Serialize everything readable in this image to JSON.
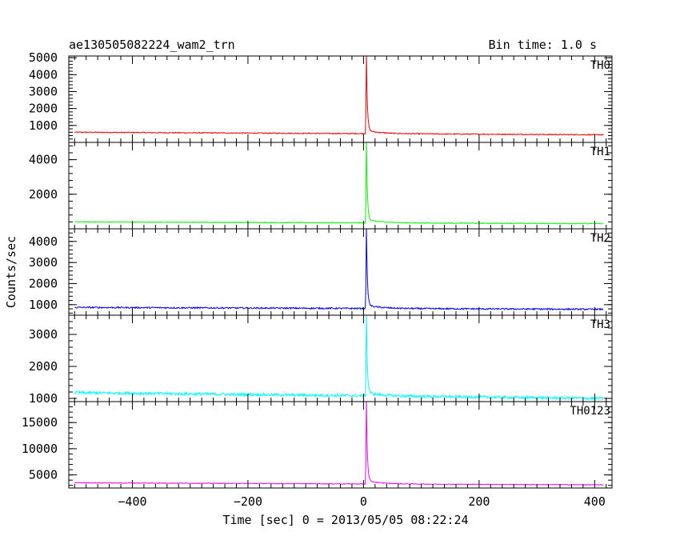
{
  "chart_data": {
    "type": "line",
    "title": "ae130505082224_wam2_trn",
    "subtitle": "Bin time: 1.0 s",
    "xlabel": "Time [sec] 0 = 2013/05/05 08:22:24",
    "ylabel": "Counts/sec",
    "xlim": [
      -510,
      430
    ],
    "xticks": [
      "−400",
      "−200",
      "0",
      "200",
      "400"
    ],
    "xtick_values": [
      -400,
      -200,
      0,
      200,
      400
    ],
    "burst_time": 5,
    "panels": [
      {
        "name": "TH0",
        "color": "#ff0000",
        "ylim": [
          0,
          5100
        ],
        "yticks": [
          "1000",
          "2000",
          "3000",
          "4000",
          "5000"
        ],
        "ytick_values": [
          1000,
          2000,
          3000,
          4000,
          5000
        ],
        "baseline_start": 600,
        "baseline_end": 450,
        "peak": 5100,
        "noise": 30
      },
      {
        "name": "TH1",
        "color": "#00ff00",
        "ylim": [
          0,
          5000
        ],
        "yticks": [
          "2000",
          "4000"
        ],
        "ytick_values": [
          2000,
          4000
        ],
        "baseline_start": 400,
        "baseline_end": 300,
        "peak": 5000,
        "noise": 25
      },
      {
        "name": "TH2",
        "color": "#0000ff",
        "ylim": [
          500,
          4600
        ],
        "yticks": [
          "1000",
          "2000",
          "3000",
          "4000"
        ],
        "ytick_values": [
          1000,
          2000,
          3000,
          4000
        ],
        "baseline_start": 870,
        "baseline_end": 780,
        "peak": 4600,
        "noise": 35
      },
      {
        "name": "TH3",
        "color": "#00ffff",
        "ylim": [
          900,
          3600
        ],
        "yticks": [
          "1000",
          "2000",
          "3000"
        ],
        "ytick_values": [
          1000,
          2000,
          3000
        ],
        "baseline_start": 1180,
        "baseline_end": 1000,
        "peak": 3600,
        "noise": 45
      },
      {
        "name": "TH0123",
        "color": "#ff00ff",
        "ylim": [
          2500,
          19000
        ],
        "yticks": [
          "5000",
          "10000",
          "15000"
        ],
        "ytick_values": [
          5000,
          10000,
          15000
        ],
        "baseline_start": 3500,
        "baseline_end": 3100,
        "peak": 19000,
        "noise": 70
      }
    ]
  }
}
